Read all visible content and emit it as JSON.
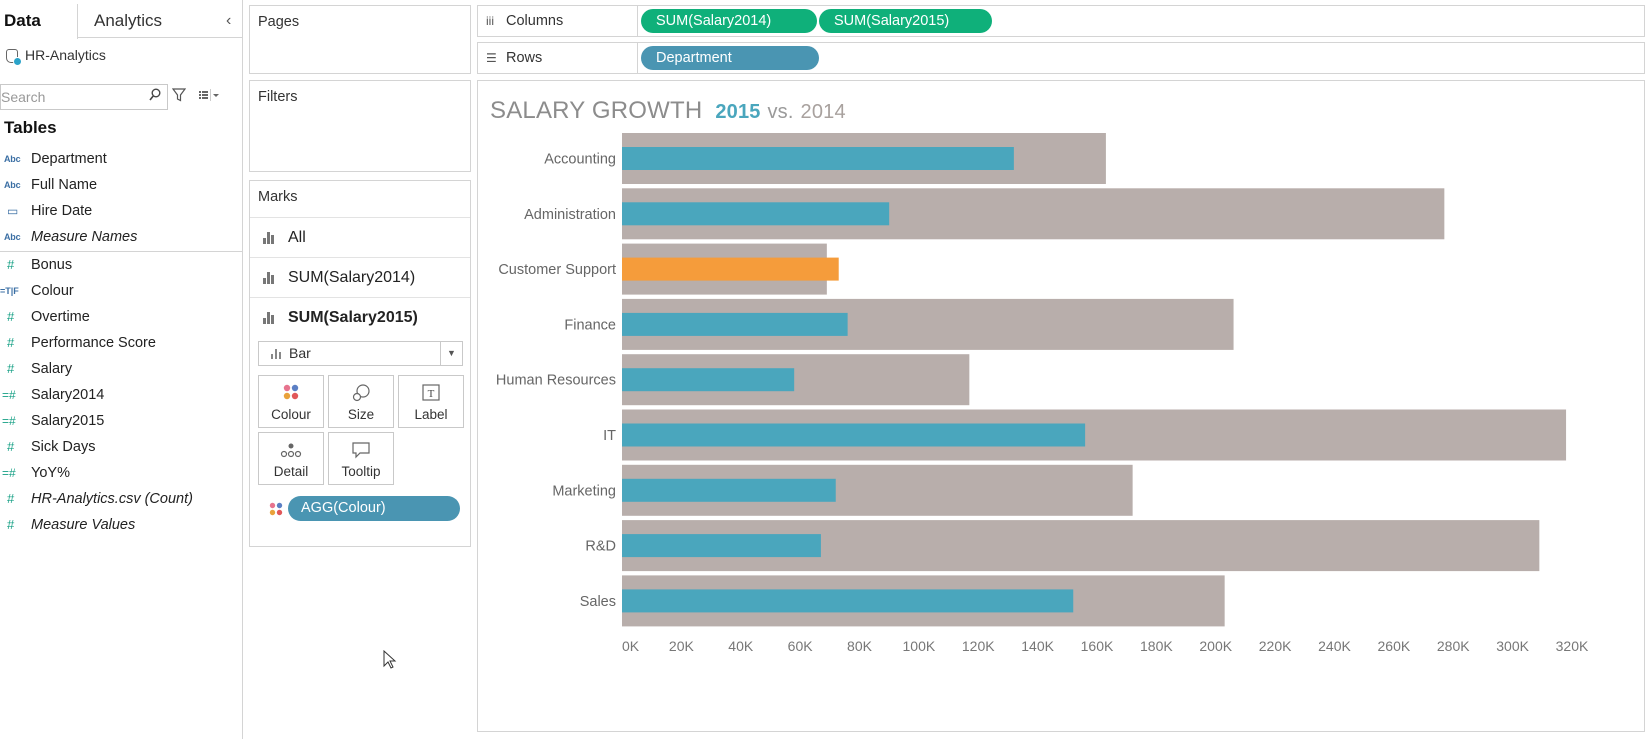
{
  "data_pane": {
    "tabs": {
      "data": "Data",
      "analytics": "Analytics"
    },
    "collapse_icon": "chevron-left-icon",
    "datasource": "HR-Analytics",
    "search_placeholder": "Search",
    "tables_heading": "Tables",
    "dimensions": [
      {
        "label": "Department",
        "icon": "abc-icon",
        "italic": false
      },
      {
        "label": "Full Name",
        "icon": "abc-icon",
        "italic": false
      },
      {
        "label": "Hire Date",
        "icon": "calendar-icon",
        "italic": false
      },
      {
        "label": "Measure Names",
        "icon": "abc-icon",
        "italic": true
      }
    ],
    "measures": [
      {
        "label": "Bonus",
        "icon": "measure-icon",
        "italic": false
      },
      {
        "label": "Colour",
        "icon": "true-false-icon",
        "italic": false
      },
      {
        "label": "Overtime",
        "icon": "measure-icon",
        "italic": false
      },
      {
        "label": "Performance Score",
        "icon": "measure-icon",
        "italic": false
      },
      {
        "label": "Salary",
        "icon": "measure-icon",
        "italic": false
      },
      {
        "label": "Salary2014",
        "icon": "calc-measure-icon",
        "italic": false
      },
      {
        "label": "Salary2015",
        "icon": "calc-measure-icon",
        "italic": false
      },
      {
        "label": "Sick Days",
        "icon": "measure-icon",
        "italic": false
      },
      {
        "label": "YoY%",
        "icon": "calc-measure-icon",
        "italic": false
      },
      {
        "label": "HR-Analytics.csv (Count)",
        "icon": "measure-icon",
        "italic": true
      },
      {
        "label": "Measure Values",
        "icon": "measure-icon",
        "italic": true
      }
    ]
  },
  "pages": {
    "title": "Pages"
  },
  "filters": {
    "title": "Filters"
  },
  "marks": {
    "title": "Marks",
    "rows": [
      "All",
      "SUM(Salary2014)",
      "SUM(Salary2015)"
    ],
    "mark_type": "Bar",
    "buttons": {
      "colour": "Colour",
      "size": "Size",
      "label": "Label",
      "detail": "Detail",
      "tooltip": "Tooltip"
    },
    "colour_pill": "AGG(Colour)"
  },
  "shelves": {
    "columns_label": "Columns",
    "rows_label": "Rows",
    "columns_pills": [
      "SUM(Salary2014)",
      "SUM(Salary2015)"
    ],
    "rows_pills": [
      "Department"
    ]
  },
  "view": {
    "title_main": "SALARY GROWTH",
    "title_2015": "2015",
    "title_vs": "vs.",
    "title_2014": "2014"
  },
  "colors": {
    "bar_2014": "#b8aeab",
    "bar_2015": "#4aa6bd",
    "bar_highlight": "#f59c3b",
    "pill_green": "#0fb07a",
    "pill_teal": "#4a95b2"
  },
  "chart_data": {
    "type": "bar",
    "orientation": "horizontal",
    "categories": [
      "Accounting",
      "Administration",
      "Customer Support",
      "Finance",
      "Human Resources",
      "IT",
      "Marketing",
      "R&D",
      "Sales"
    ],
    "series": [
      {
        "name": "2014",
        "values": [
          163000,
          277000,
          69000,
          206000,
          117000,
          318000,
          172000,
          309000,
          203000
        ]
      },
      {
        "name": "2015",
        "values": [
          132000,
          90000,
          73000,
          76000,
          58000,
          156000,
          72000,
          67000,
          152000
        ]
      }
    ],
    "highlight_category": "Customer Support",
    "x_ticks": [
      "0K",
      "20K",
      "40K",
      "60K",
      "80K",
      "100K",
      "120K",
      "140K",
      "160K",
      "180K",
      "200K",
      "220K",
      "240K",
      "260K",
      "280K",
      "300K",
      "320K"
    ],
    "xlim": [
      0,
      320000
    ],
    "grid": false
  }
}
